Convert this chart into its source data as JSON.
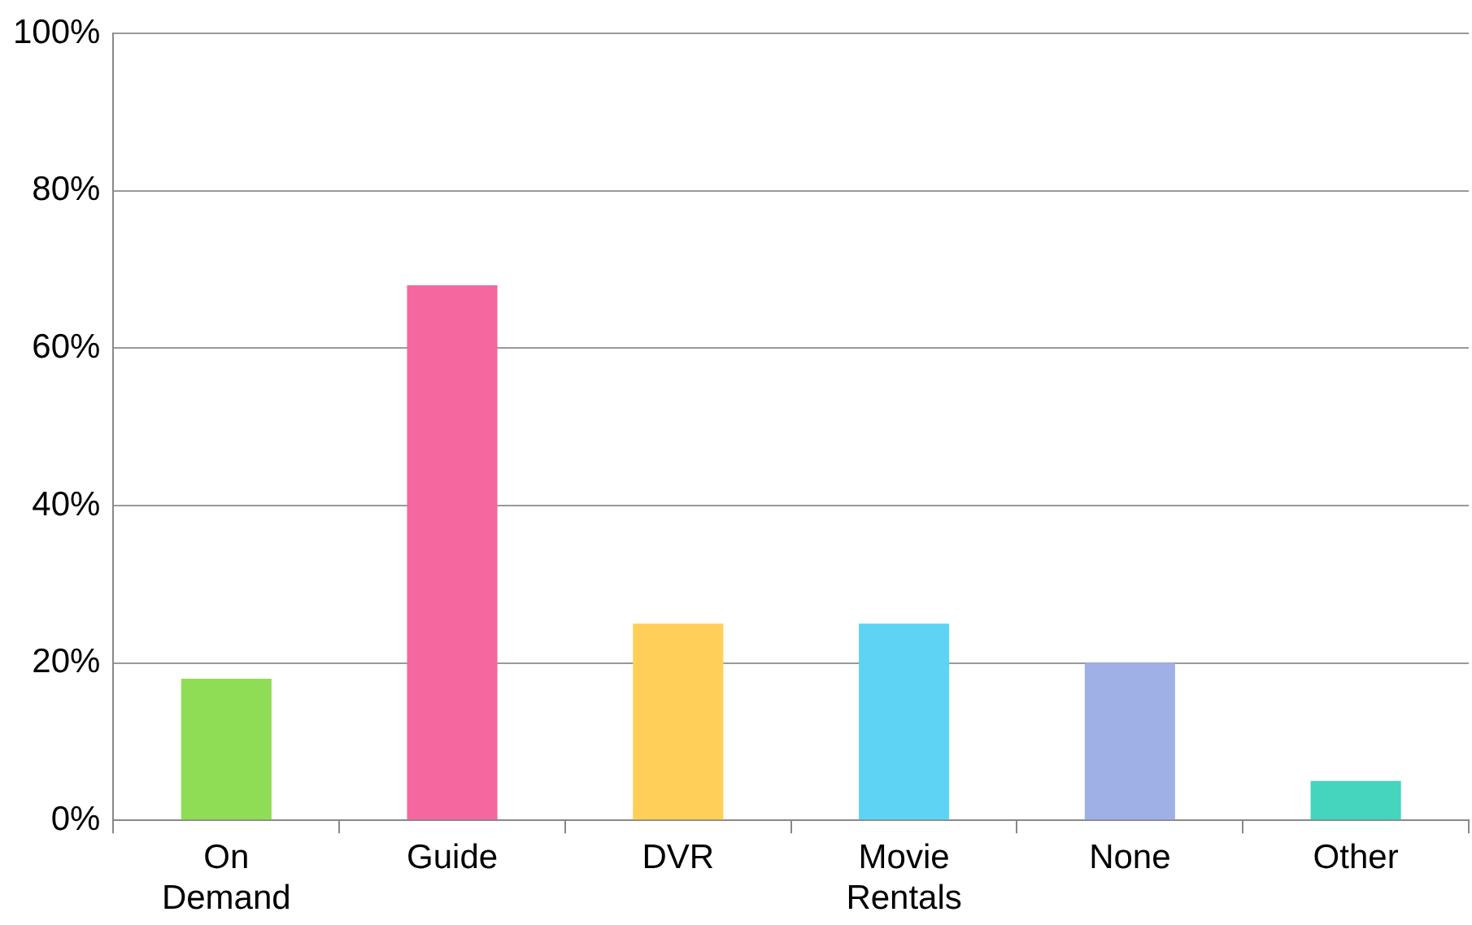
{
  "chart_data": {
    "type": "bar",
    "categories": [
      "On Demand",
      "Guide",
      "DVR",
      "Movie Rentals",
      "None",
      "Other"
    ],
    "values": [
      18,
      68,
      25,
      25,
      20,
      5
    ],
    "colors": [
      "#8fdc55",
      "#f4679f",
      "#ffcf5a",
      "#5fd3f3",
      "#9fb0e6",
      "#45d4bd"
    ],
    "ylim": [
      0,
      100
    ],
    "yticks": [
      {
        "value": 0,
        "label": "0%"
      },
      {
        "value": 20,
        "label": "20%"
      },
      {
        "value": 40,
        "label": "40%"
      },
      {
        "value": 60,
        "label": "60%"
      },
      {
        "value": 80,
        "label": "80%"
      },
      {
        "value": 100,
        "label": "100%"
      }
    ],
    "grid": "y",
    "legend": false
  }
}
